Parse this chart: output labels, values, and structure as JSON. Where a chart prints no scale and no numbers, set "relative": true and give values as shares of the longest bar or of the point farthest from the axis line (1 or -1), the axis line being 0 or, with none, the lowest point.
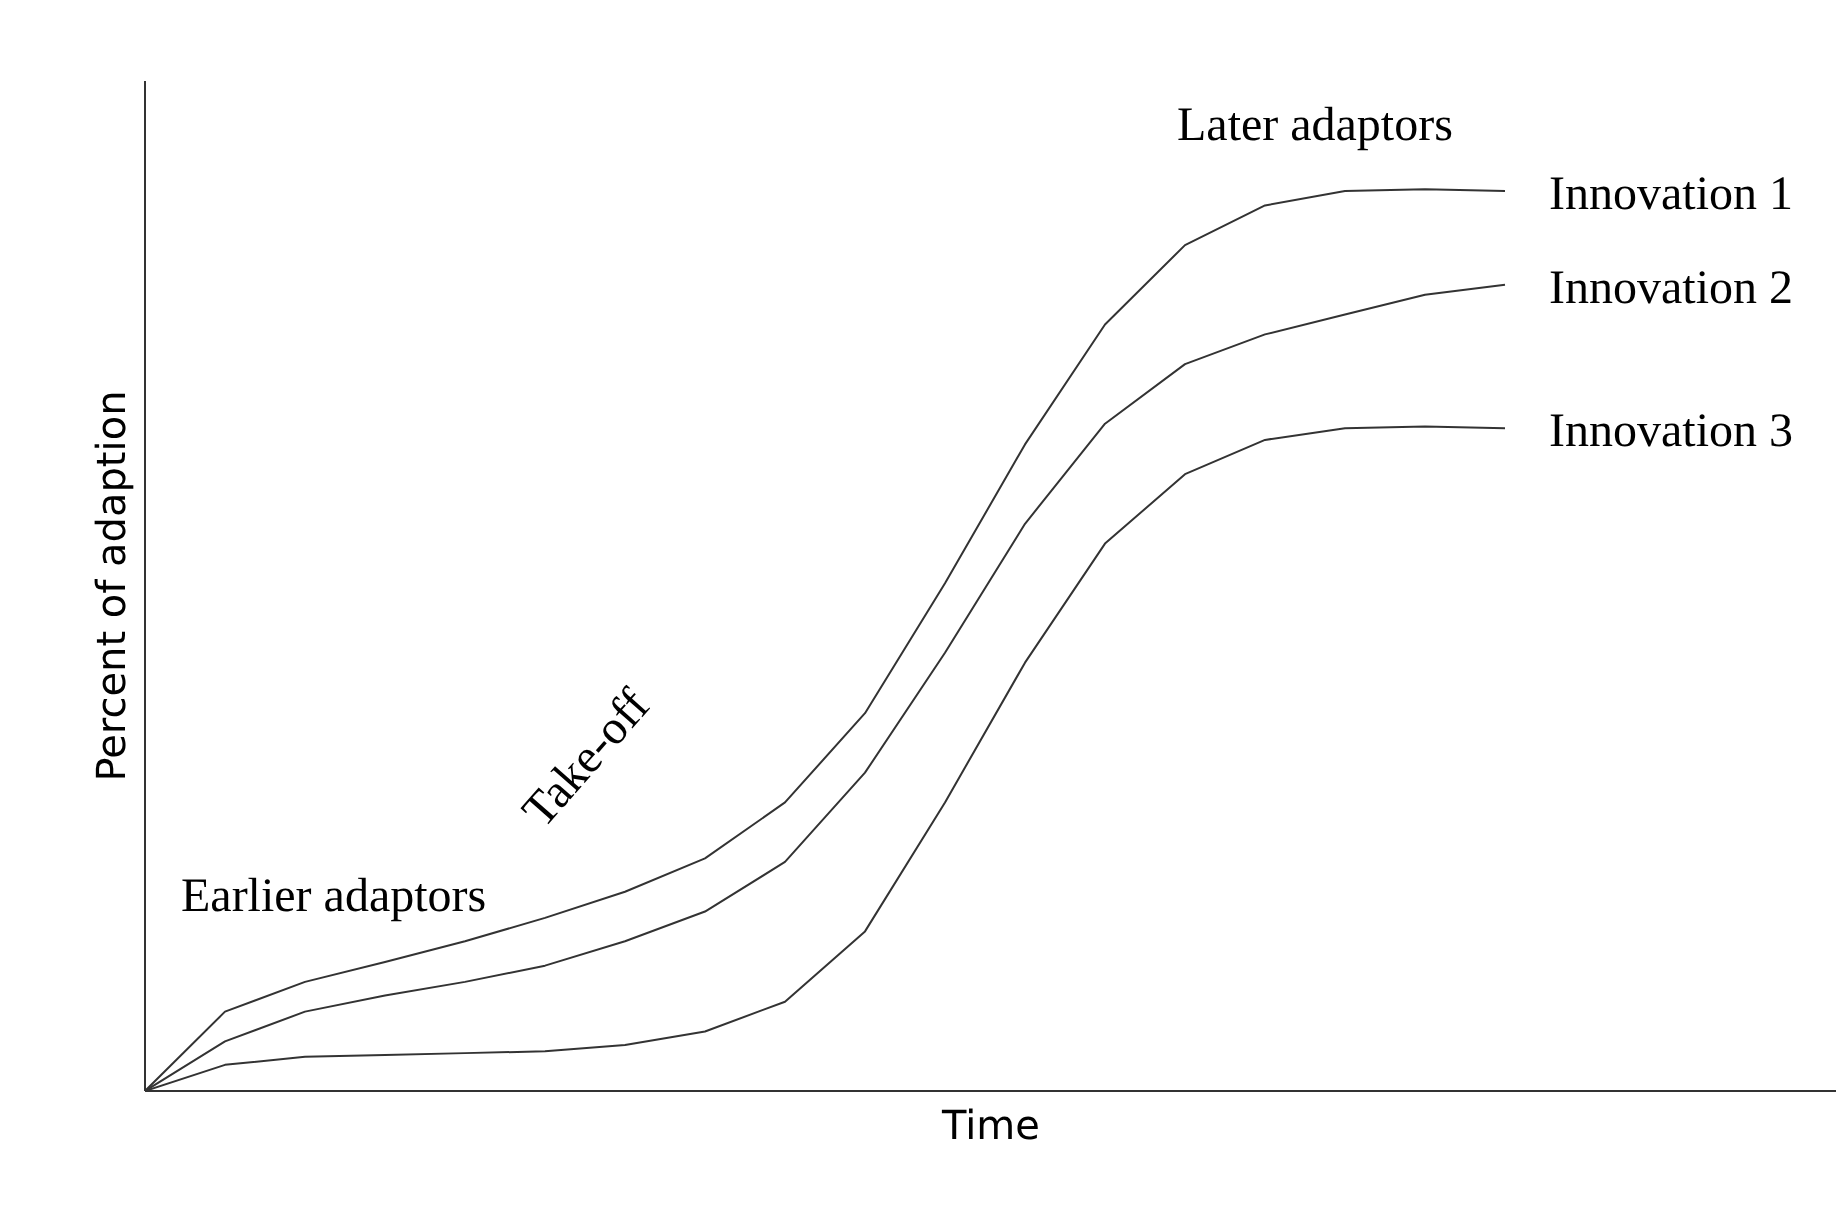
{
  "chart_data": {
    "type": "line",
    "relative": true,
    "xlabel": "Time",
    "ylabel": "Percent of adaption",
    "categories": [
      null,
      null,
      null,
      null,
      null,
      null,
      null,
      null,
      null,
      null,
      null,
      null,
      null,
      null,
      null,
      null,
      null,
      null
    ],
    "series": [
      {
        "name": "Innovation 1",
        "color": "#333333",
        "values": [
          0,
          0.088,
          0.121,
          0.143,
          0.166,
          0.192,
          0.221,
          0.258,
          0.32,
          0.419,
          0.563,
          0.717,
          0.85,
          0.938,
          0.982,
          0.998,
          1,
          0.998
        ]
      },
      {
        "name": "Innovation 2",
        "color": "#333333",
        "values": [
          0,
          0.055,
          0.088,
          0.106,
          0.121,
          0.139,
          0.166,
          0.199,
          0.254,
          0.353,
          0.486,
          0.629,
          0.74,
          0.806,
          0.839,
          0.861,
          0.883,
          0.894
        ]
      },
      {
        "name": "Innovation 3",
        "color": "#333333",
        "values": [
          0,
          0.029,
          0.038,
          0.04,
          0.042,
          0.044,
          0.051,
          0.066,
          0.099,
          0.177,
          0.32,
          0.475,
          0.607,
          0.684,
          0.722,
          0.735,
          0.737,
          0.735
        ]
      }
    ],
    "annotations": [
      "Later adaptors",
      "Earlier adaptors",
      "Take-off"
    ],
    "grid": false,
    "legend": false,
    "marker": "none",
    "line_style": "solid"
  }
}
